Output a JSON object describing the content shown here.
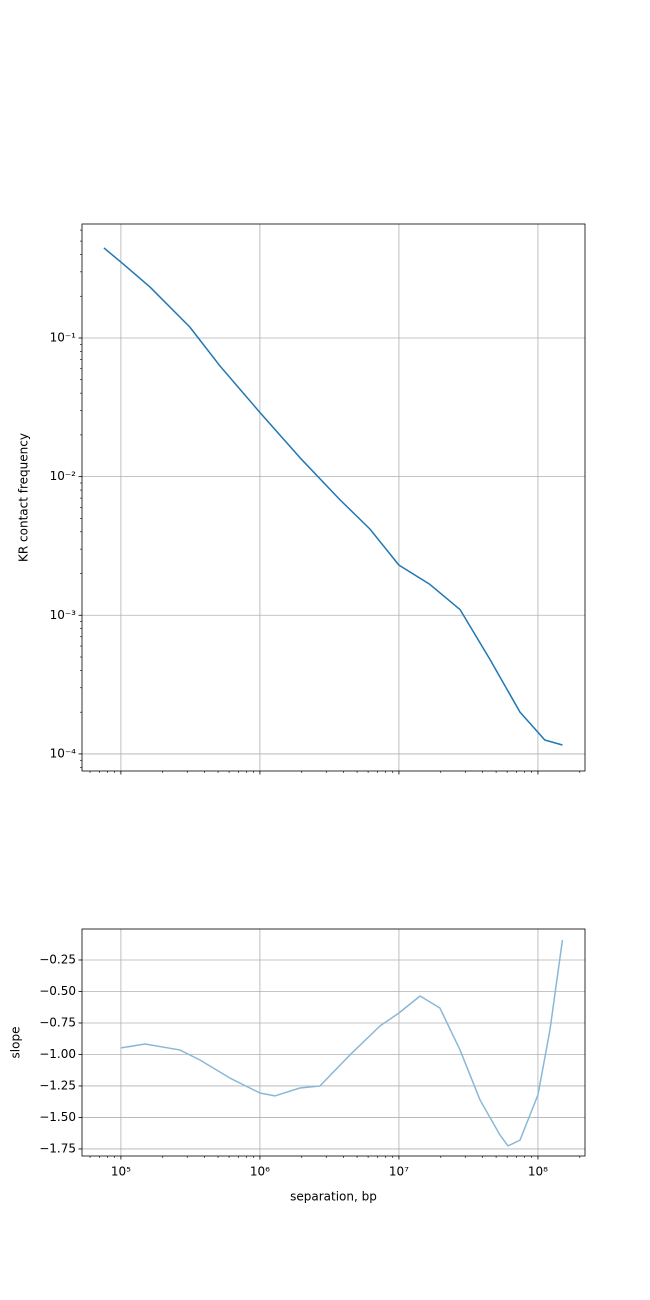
{
  "chart_data": [
    {
      "type": "line",
      "ylabel": "KR contact frequency",
      "xscale": "log",
      "yscale": "log",
      "grid": true,
      "xlim": [
        52500,
        218000000
      ],
      "ylim": [
        7.53e-05,
        0.664
      ],
      "xticks": [
        100000,
        1000000,
        10000000,
        100000000
      ],
      "yticks": [
        {
          "value": 0.0001,
          "label": "10⁻⁴"
        },
        {
          "value": 0.001,
          "label": "10⁻³"
        },
        {
          "value": 0.01,
          "label": "10⁻²"
        },
        {
          "value": 0.1,
          "label": "10⁻¹"
        }
      ],
      "x": [
        75500,
        100000,
        162000,
        313000,
        515000,
        1000000,
        1940000,
        3770000,
        6170000,
        10000000,
        16700000,
        27500000,
        45200000,
        74300000,
        112000000,
        150000000
      ],
      "series": [
        {
          "color": "#1f77b4",
          "values": [
            0.446,
            0.353,
            0.233,
            0.12,
            0.063,
            0.029,
            0.0137,
            0.0068,
            0.0042,
            0.0023,
            0.00167,
            0.0011,
            0.00048,
            0.0002,
            0.000126,
            0.000116
          ]
        }
      ]
    },
    {
      "type": "line",
      "xlabel": "separation, bp",
      "ylabel": "slope",
      "xscale": "log",
      "grid": true,
      "xlim": [
        52500,
        218000000
      ],
      "ylim": [
        -1.806,
        -0.004
      ],
      "xticks": [
        {
          "value": 100000,
          "label": "10⁵"
        },
        {
          "value": 1000000,
          "label": "10⁶"
        },
        {
          "value": 10000000,
          "label": "10⁷"
        },
        {
          "value": 100000000,
          "label": "10⁸"
        }
      ],
      "yticks": [
        {
          "value": -1.75,
          "label": "−1.75"
        },
        {
          "value": -1.5,
          "label": "−1.50"
        },
        {
          "value": -1.25,
          "label": "−1.25"
        },
        {
          "value": -1,
          "label": "−1.00"
        },
        {
          "value": -0.75,
          "label": "−0.75"
        },
        {
          "value": -0.5,
          "label": "−0.50"
        },
        {
          "value": -0.25,
          "label": "−0.25"
        }
      ],
      "x": [
        100000,
        149000,
        265000,
        370000,
        608000,
        1000000,
        1280000,
        1940000,
        2700000,
        4440000,
        7300000,
        10000000,
        14200000,
        19700000,
        27500000,
        38300000,
        53300000,
        60900000,
        74300000,
        100000000,
        122000000,
        150000000
      ],
      "series": [
        {
          "color": "#89b8d7",
          "values": [
            -0.948,
            -0.917,
            -0.964,
            -1.044,
            -1.187,
            -1.306,
            -1.329,
            -1.266,
            -1.25,
            -1.004,
            -0.774,
            -0.671,
            -0.536,
            -0.631,
            -0.964,
            -1.361,
            -1.639,
            -1.726,
            -1.68,
            -1.321,
            -0.806,
            -0.091
          ]
        }
      ]
    }
  ]
}
